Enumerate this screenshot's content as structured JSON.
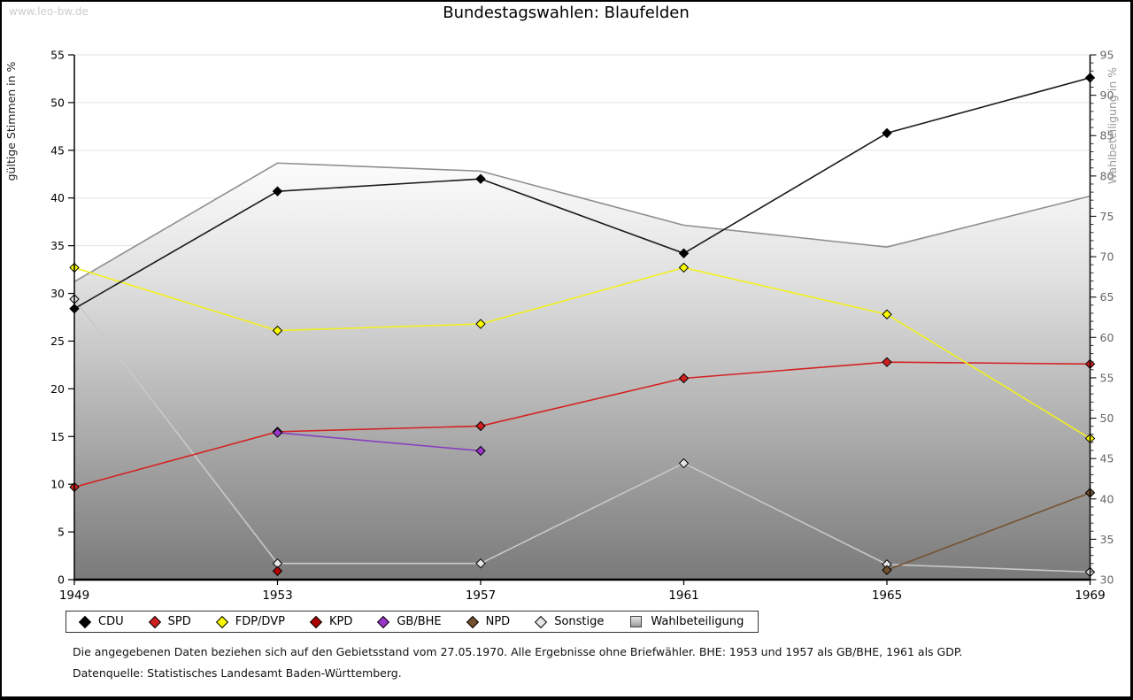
{
  "watermark": "www.leo-bw.de",
  "title": "Bundestagswahlen: Blaufelden",
  "footnotes": {
    "line1": "Die angegebenen Daten beziehen sich auf den Gebietsstand vom 27.05.1970. Alle Ergebnisse ohne Briefwähler. BHE: 1953 und 1957 als GB/BHE, 1961 als GDP.",
    "line2": "Datenquelle: Statistisches Landesamt Baden-Württemberg."
  },
  "chart_data": {
    "type": "line",
    "title": "Bundestagswahlen: Blaufelden",
    "x": [
      1949,
      1953,
      1957,
      1961,
      1965,
      1969
    ],
    "left_axis": {
      "label": "gültige Stimmen in %",
      "min": 0,
      "max": 55,
      "tick_step": 5,
      "ticks": [
        0,
        5,
        10,
        15,
        20,
        25,
        30,
        35,
        40,
        45,
        50,
        55
      ]
    },
    "right_axis": {
      "label": "Wahlbeteiligung in %",
      "min": 30,
      "max": 95,
      "tick_step": 5,
      "minor_tick_step": 1,
      "ticks": [
        30,
        35,
        40,
        45,
        50,
        55,
        60,
        65,
        70,
        75,
        80,
        85,
        90,
        95
      ]
    },
    "grid": true,
    "legend_position": "bottom",
    "area_gradient": [
      "#ffffff",
      "#e0e0e0",
      "#7a7a7a"
    ],
    "series": [
      {
        "name": "CDU",
        "axis": "left",
        "type": "line",
        "marker": "diamond",
        "z": 7,
        "color": "#000000",
        "line_color": "#1a1a1a",
        "values": [
          28.4,
          40.7,
          42.0,
          34.2,
          46.8,
          52.6
        ]
      },
      {
        "name": "SPD",
        "axis": "left",
        "type": "line",
        "marker": "diamond",
        "z": 3,
        "color": "#d01f1f",
        "line_color": "#d42222",
        "values": [
          9.7,
          15.5,
          16.1,
          21.1,
          22.8,
          22.6
        ]
      },
      {
        "name": "FDP/DVP",
        "axis": "left",
        "type": "line",
        "marker": "diamond",
        "z": 6,
        "color": "#fbfb00",
        "line_color": "#f2f01e",
        "values": [
          32.7,
          26.1,
          26.8,
          32.7,
          27.8,
          14.8
        ]
      },
      {
        "name": "KPD",
        "axis": "left",
        "type": "line",
        "marker": "diamond",
        "z": 4,
        "color": "#b00000",
        "line_color": "#b00000",
        "values": [
          null,
          0.9,
          null,
          null,
          null,
          null
        ]
      },
      {
        "name": "GB/BHE",
        "axis": "left",
        "type": "line",
        "marker": "diamond",
        "z": 5,
        "color": "#9b35cb",
        "line_color": "#8a3fbf",
        "values": [
          null,
          15.4,
          13.5,
          null,
          null,
          null
        ]
      },
      {
        "name": "NPD",
        "axis": "left",
        "type": "line",
        "marker": "diamond",
        "z": 2,
        "color": "#74512f",
        "line_color": "#74512f",
        "values": [
          null,
          null,
          null,
          null,
          1.0,
          9.1
        ]
      },
      {
        "name": "Sonstige",
        "axis": "left",
        "type": "line",
        "marker": "diamond",
        "z": 1,
        "color": "#e6e6e6",
        "line_color": "#c9c9c9",
        "values": [
          29.4,
          1.7,
          1.7,
          12.2,
          1.6,
          0.8
        ]
      },
      {
        "name": "Wahlbeteiligung",
        "axis": "right",
        "type": "area",
        "marker": "square",
        "z": 0,
        "color": "#c4c4c4",
        "line_color": "#8f8f8f",
        "values": [
          66.9,
          81.6,
          80.6,
          73.9,
          71.2,
          77.5
        ]
      }
    ]
  }
}
